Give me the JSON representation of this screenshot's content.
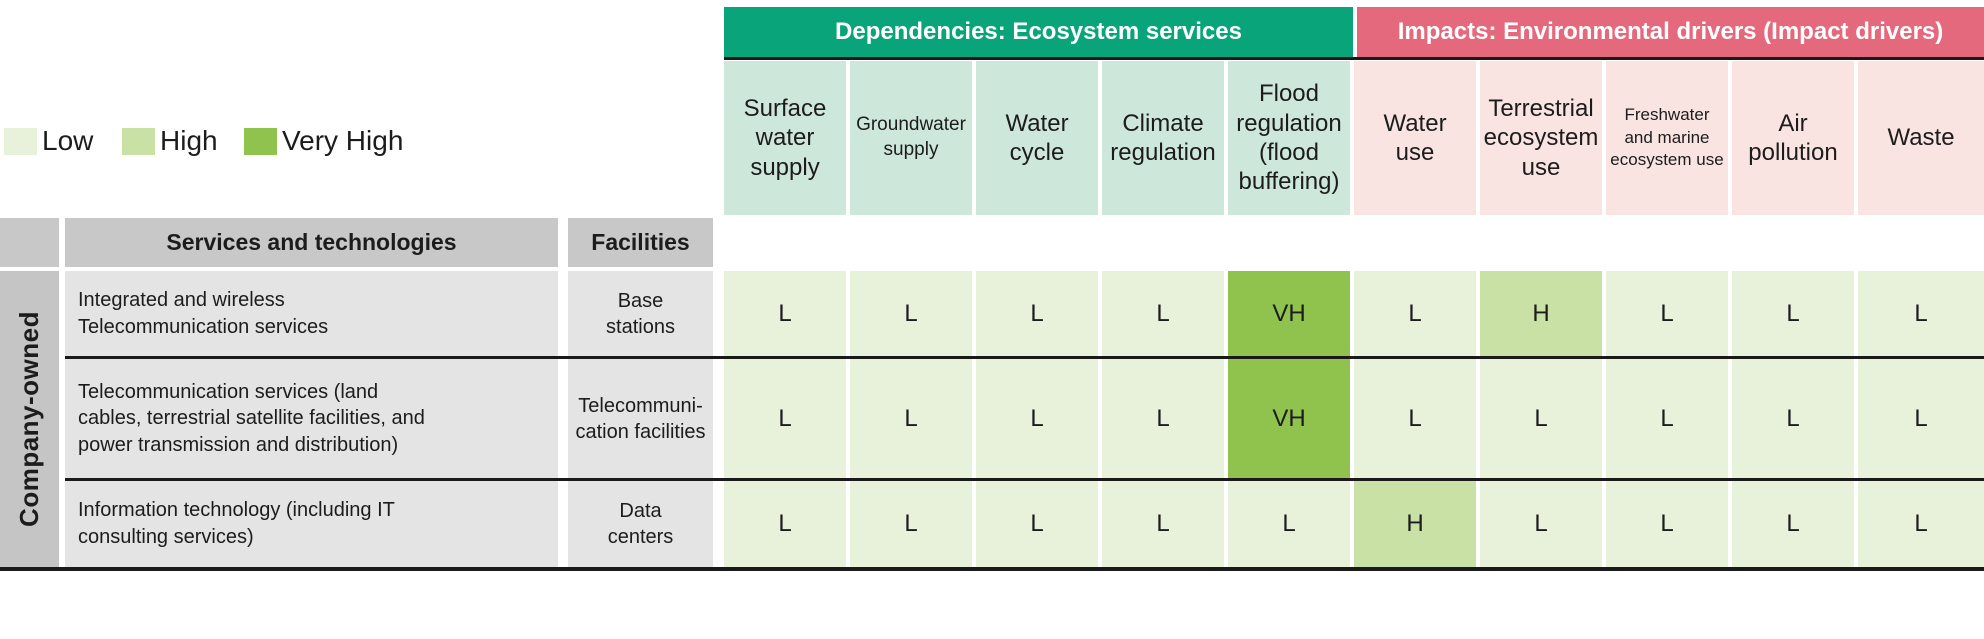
{
  "colors": {
    "teal": "#0aa47a",
    "pinkBanner": "#e5697c",
    "mint": "#cee7db",
    "pinkCell": "#fae4e1",
    "lvL": "#e8f2db",
    "lvH": "#c9e1a5",
    "lvVH": "#90c24e",
    "headGray": "#c8c8c8",
    "stripGray": "#c5c5c5",
    "bodyGray": "#e4e4e4",
    "line": "#1a1a1a",
    "text": "#1c1c1c"
  },
  "legend": {
    "items": [
      {
        "label": "Low",
        "level": "L"
      },
      {
        "label": "High",
        "level": "H"
      },
      {
        "label": "Very High",
        "level": "VH"
      }
    ]
  },
  "banners": {
    "dependencies": "Dependencies: Ecosystem services",
    "impacts": "Impacts: Environmental drivers (Impact drivers)"
  },
  "left_headers": {
    "services": "Services and technologies",
    "facilities": "Facilities"
  },
  "group_label": "Company-owned",
  "columns": [
    {
      "label": "Surface\nwater\nsupply",
      "group": "dependencies"
    },
    {
      "label": "Groundwater\nsupply",
      "group": "dependencies"
    },
    {
      "label": "Water\ncycle",
      "group": "dependencies"
    },
    {
      "label": "Climate\nregulation",
      "group": "dependencies"
    },
    {
      "label": "Flood\nregulation\n(flood\nbuffering)",
      "group": "dependencies"
    },
    {
      "label": "Water\nuse",
      "group": "impacts"
    },
    {
      "label": "Terrestrial\necosystem\nuse",
      "group": "impacts"
    },
    {
      "label": "Freshwater\nand marine\necosystem use",
      "group": "impacts"
    },
    {
      "label": "Air\npollution",
      "group": "impacts"
    },
    {
      "label": "Waste",
      "group": "impacts"
    }
  ],
  "rows": [
    {
      "services": "Integrated and wireless\nTelecommunication services",
      "facilities": "Base\nstations",
      "values": [
        "L",
        "L",
        "L",
        "L",
        "VH",
        "L",
        "H",
        "L",
        "L",
        "L"
      ]
    },
    {
      "services": "Telecommunication services (land\ncables, terrestrial satellite facilities, and\npower transmission and distribution)",
      "facilities": "Telecommuni-\ncation facilities",
      "values": [
        "L",
        "L",
        "L",
        "L",
        "VH",
        "L",
        "L",
        "L",
        "L",
        "L"
      ]
    },
    {
      "services": "Information technology (including IT\nconsulting services)",
      "facilities": "Data\ncenters",
      "values": [
        "L",
        "L",
        "L",
        "L",
        "L",
        "H",
        "L",
        "L",
        "L",
        "L"
      ]
    }
  ],
  "chart_data": {
    "type": "heatmap",
    "title": "Dependencies on ecosystem services and impacts on environmental drivers (Company-owned)",
    "legend": [
      "Low",
      "High",
      "Very High"
    ],
    "legend_position": "top-left",
    "value_scale": {
      "L": "Low",
      "H": "High",
      "VH": "Very High"
    },
    "column_groups": [
      {
        "name": "Dependencies: Ecosystem services",
        "columns": [
          "Surface water supply",
          "Groundwater supply",
          "Water cycle",
          "Climate regulation",
          "Flood regulation (flood buffering)"
        ]
      },
      {
        "name": "Impacts: Environmental drivers (Impact drivers)",
        "columns": [
          "Water use",
          "Terrestrial ecosystem use",
          "Freshwater and marine ecosystem use",
          "Air pollution",
          "Waste"
        ]
      }
    ],
    "row_group": "Company-owned",
    "rows": [
      {
        "services_and_technologies": "Integrated and wireless Telecommunication services",
        "facilities": "Base stations",
        "values": [
          "L",
          "L",
          "L",
          "L",
          "VH",
          "L",
          "H",
          "L",
          "L",
          "L"
        ]
      },
      {
        "services_and_technologies": "Telecommunication services (land cables, terrestrial satellite facilities, and power transmission and distribution)",
        "facilities": "Telecommunication facilities",
        "values": [
          "L",
          "L",
          "L",
          "L",
          "VH",
          "L",
          "L",
          "L",
          "L",
          "L"
        ]
      },
      {
        "services_and_technologies": "Information technology (including IT consulting services)",
        "facilities": "Data centers",
        "values": [
          "L",
          "L",
          "L",
          "L",
          "L",
          "H",
          "L",
          "L",
          "L",
          "L"
        ]
      }
    ]
  }
}
